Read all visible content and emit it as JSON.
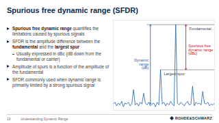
{
  "title": "Spurious free dynamic range (SFDR)",
  "bullets": [
    {
      "segments": [
        {
          "text": "Spurious free dynamic range",
          "bold": true
        },
        {
          "text": " quantifies the limitations caused by spurious signals"
        }
      ]
    },
    {
      "segments": [
        {
          "text": "SFDR is the amplitude difference between the "
        },
        {
          "text": "fundamental",
          "bold": true
        },
        {
          "text": " and the "
        },
        {
          "text": "largest spur",
          "bold": true
        }
      ],
      "sub": [
        "Usually expressed in dBc (dB down from the fundamental or carrier)"
      ]
    },
    {
      "segments": [
        {
          "text": "Amplitude of spurs is a function of the amplitude of the fundamental"
        }
      ]
    },
    {
      "segments": [
        {
          "text": "SFDR commonly used when dynamic range is primarily limited by a strong spurious signal"
        }
      ]
    }
  ],
  "footer": {
    "page": "10",
    "text": "Understanding Dynamic Range",
    "logo": "ROHDE&SCHWARZ"
  },
  "chart_data": {
    "type": "line",
    "color": "#1c5fa8",
    "tick_labels": false,
    "grid": false,
    "xlim": [
      0,
      60
    ],
    "ylim": [
      -95,
      5
    ],
    "x": [
      0,
      1,
      2,
      3,
      4,
      5,
      6,
      7,
      8,
      9,
      10,
      11,
      12,
      13,
      14,
      15,
      16,
      17,
      18,
      19,
      20,
      21,
      22,
      23,
      24,
      25,
      26,
      27,
      28,
      29,
      30,
      31,
      32,
      33,
      34,
      35,
      36,
      37,
      38,
      39,
      40,
      41,
      42,
      43,
      44,
      45,
      46,
      47,
      48,
      49,
      50,
      51,
      52,
      53,
      54,
      55,
      56,
      57,
      58,
      59,
      60
    ],
    "values": [
      -88,
      -86,
      -90,
      -87,
      -89,
      -85,
      -91,
      -87,
      -88,
      -86,
      -90,
      -88,
      -72,
      -89,
      -87,
      -90,
      -86,
      -88,
      -76,
      -87,
      -89,
      -86,
      -90,
      -88,
      -87,
      -91,
      -86,
      -89,
      -50,
      -88,
      -86,
      -90,
      -87,
      -89,
      -85,
      -88,
      -90,
      0,
      -87,
      -89,
      -86,
      -88,
      -90,
      -87,
      -85,
      -89,
      -88,
      -68,
      -90,
      -86,
      -88,
      -87,
      -89,
      -74,
      -87,
      -88,
      -86,
      -90,
      -88,
      -89,
      -87
    ],
    "fundamental": {
      "label": "Fundamental",
      "x": 37,
      "level": 0
    },
    "largest_spur": {
      "label": "Largest spur",
      "x": 28,
      "level": -50
    },
    "noise_floor": -88,
    "dynamic_range": {
      "label": "Dynamic range (dB)",
      "x": 22,
      "color": "#1c5fa8"
    },
    "sfdr": {
      "label": "Spurious free dynamic range (dBc)",
      "x": 43,
      "color": "#e2001a"
    }
  }
}
